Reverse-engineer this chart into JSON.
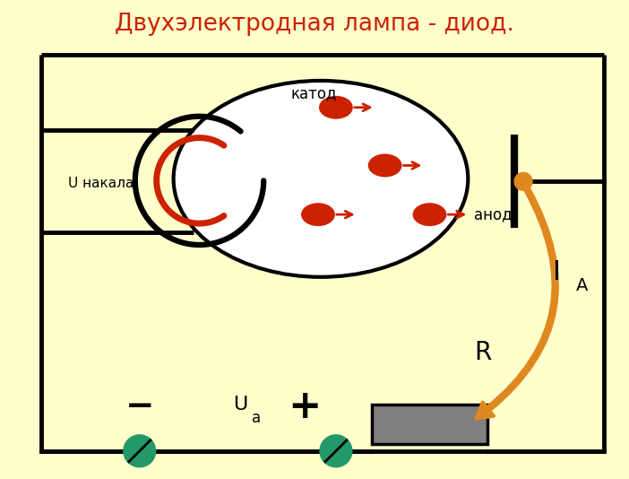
{
  "title": "Двухэлектродная лампа - диод.",
  "title_color": "#cc2200",
  "title_fontsize": 19,
  "bg_color": "#ffffcc",
  "label_katod": "катод",
  "label_anod": "анод",
  "label_u_nakala": "U накала",
  "label_ia": "I",
  "label_ia_sub": "A",
  "label_r": "R",
  "label_ua": "U",
  "label_ua_sub": "a",
  "label_minus": "−",
  "label_plus": "+",
  "electron_color": "#cc2200",
  "arrow_color": "#cc2200",
  "orange_color": "#e08820",
  "green_color": "#229966",
  "wire_color": "#000000",
  "resistor_color": "#808080"
}
